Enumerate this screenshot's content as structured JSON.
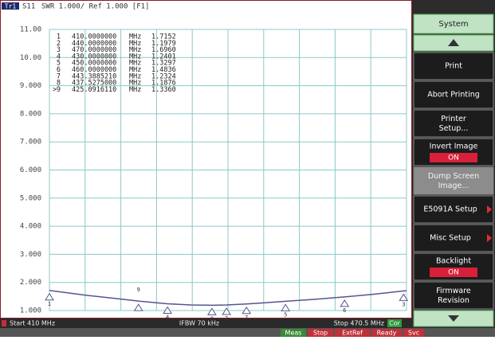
{
  "header": {
    "trace": "Tr1",
    "format": "SWR 1.000/ Ref 1.000 [F1]"
  },
  "chart_data": {
    "type": "line",
    "x": [
      410,
      416,
      422,
      425.091611,
      430,
      434,
      437.5275,
      440,
      443.388521,
      446,
      450,
      455,
      460,
      465,
      470,
      470.5
    ],
    "series": [
      {
        "name": "S11",
        "color": "#55558f",
        "values": [
          1.7152,
          1.55,
          1.41,
          1.336,
          1.2401,
          1.2,
          1.1876,
          1.1979,
          1.2324,
          1.27,
          1.3297,
          1.4,
          1.4836,
          1.58,
          1.696,
          1.705
        ]
      }
    ],
    "xlim": [
      410,
      470.5
    ],
    "xticks": [
      410,
      416.05,
      422.1,
      428.15,
      434.2,
      440.25,
      446.3,
      452.35,
      458.4,
      464.45,
      470.5
    ],
    "ylim": [
      1,
      11
    ],
    "yticks": [
      {
        "value": 1,
        "label": "1.000"
      },
      {
        "value": 2,
        "label": "2.000"
      },
      {
        "value": 3,
        "label": "3.000"
      },
      {
        "value": 4,
        "label": "4.000"
      },
      {
        "value": 5,
        "label": "5.000"
      },
      {
        "value": 6,
        "label": "6.000"
      },
      {
        "value": 7,
        "label": "7.000"
      },
      {
        "value": 8,
        "label": "8.000"
      },
      {
        "value": 9,
        "label": "9.000"
      },
      {
        "value": 10,
        "label": "10.00"
      },
      {
        "value": 11,
        "label": "11.00"
      }
    ],
    "grid": true,
    "grid_color": "#8cc8c8",
    "markers": {
      "names": [
        "1",
        "2",
        "3",
        "4",
        "5",
        "6",
        "7",
        "8",
        "9"
      ],
      "freqs": [
        410,
        440,
        470,
        430,
        450,
        460,
        443.388521,
        437.5275,
        425.091611
      ],
      "freq_labels": [
        "410.0000000",
        "440.0000000",
        "470.0000000",
        "430.0000000",
        "450.0000000",
        "460.0000000",
        "443.3885210",
        "437.5275000",
        "425.0916110"
      ],
      "unit": "MHz",
      "values": [
        1.7152,
        1.1979,
        1.696,
        1.2401,
        1.3297,
        1.4836,
        1.2324,
        1.1876,
        1.336
      ],
      "value_labels": [
        "1.7152",
        "1.1979",
        "1.6960",
        "1.2401",
        "1.3297",
        "1.4836",
        "1.2324",
        "1.1876",
        "1.3360"
      ],
      "active": 8,
      "active_prefix": ">"
    }
  },
  "footer": {
    "start": "Start 410 MHz",
    "ifbw": "IFBW 70 kHz",
    "stop": "Stop 470.5 MHz",
    "cor": "Cor"
  },
  "status": [
    "Meas",
    "Stop",
    "ExtRef",
    "Ready",
    "Svc"
  ],
  "softkeys": {
    "title": "System",
    "items": [
      {
        "label": "Print"
      },
      {
        "label": "Abort Printing"
      },
      {
        "label": "Printer Setup..."
      },
      {
        "label": "Invert Image",
        "state": "ON"
      },
      {
        "label": "Dump Screen Image...",
        "style": "gray"
      },
      {
        "label": "E5091A Setup",
        "submenu": true
      },
      {
        "label": "Misc Setup",
        "submenu": true
      },
      {
        "label": "Backlight",
        "state": "ON"
      },
      {
        "label": "Firmware Revision"
      }
    ]
  }
}
